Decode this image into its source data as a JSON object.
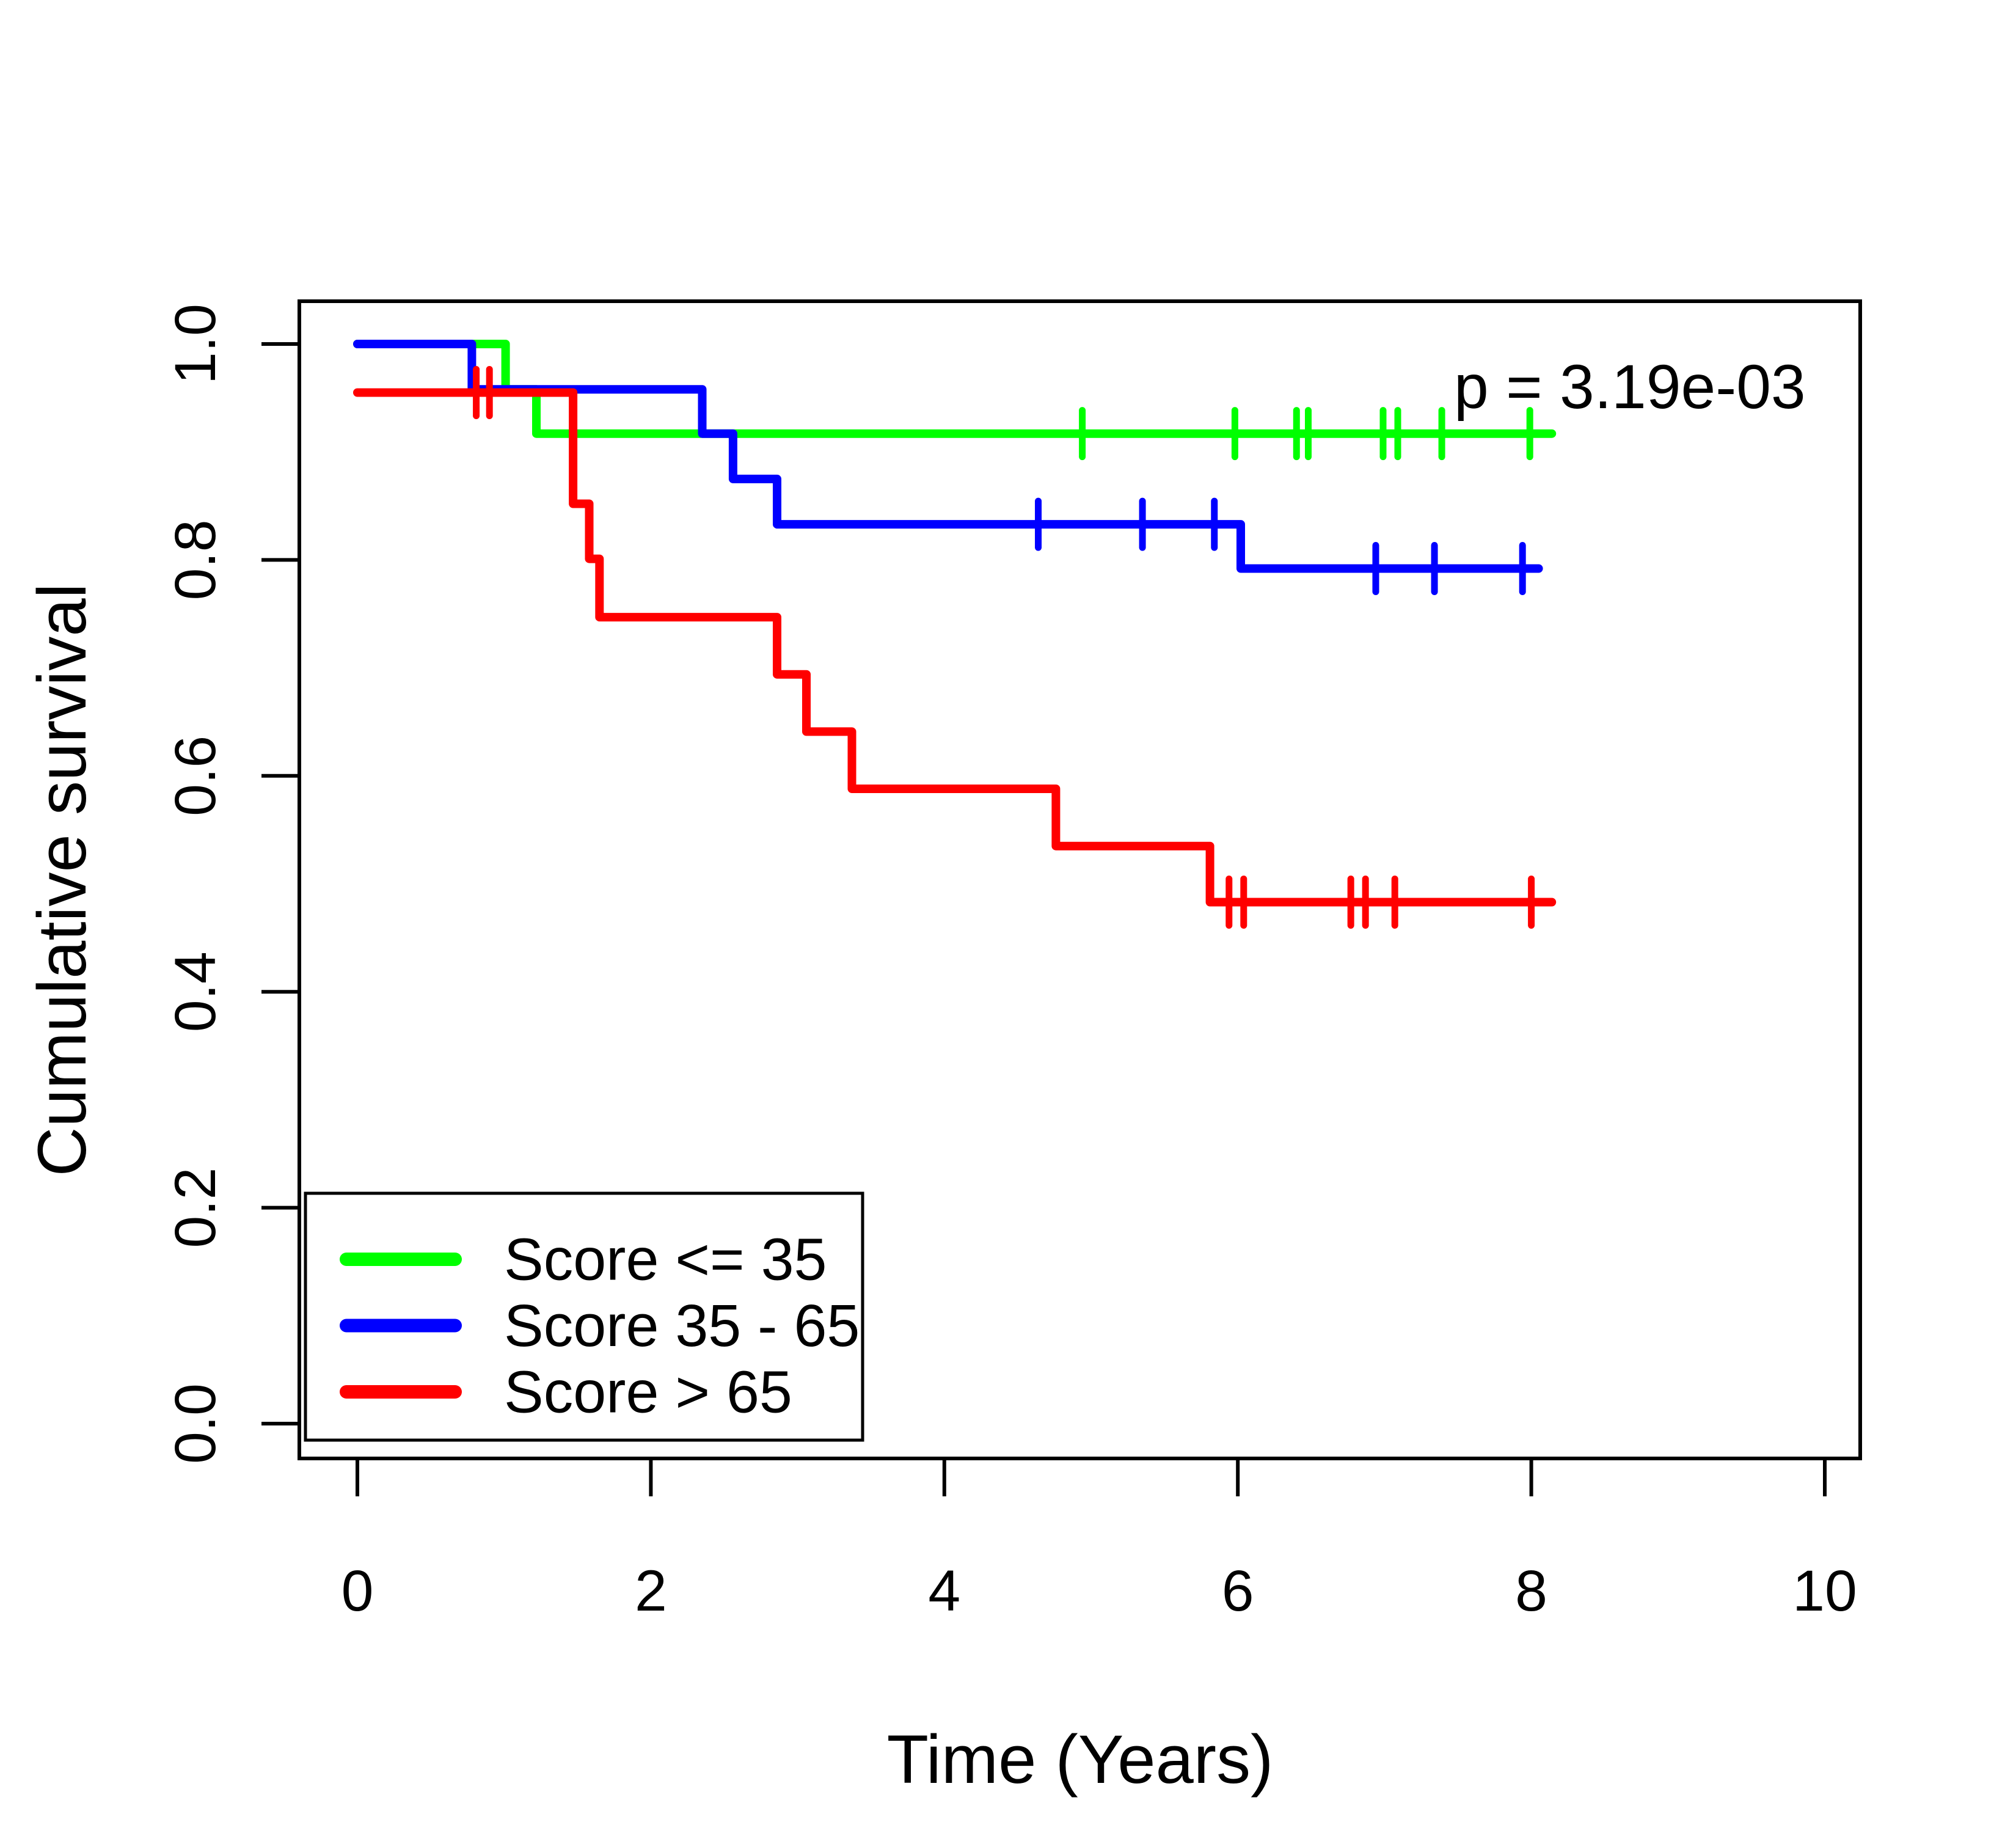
{
  "figure": {
    "background": "#ffffff",
    "axis_color": "#000000"
  },
  "chart_data": {
    "type": "line",
    "subtype": "kaplan-meier-step",
    "title": "",
    "xlabel": "Time (Years)",
    "ylabel": "Cumulative survival",
    "xlim": [
      -0.4,
      10.25
    ],
    "ylim": [
      -0.03,
      1.04
    ],
    "grid": false,
    "legend_position": "bottom-left",
    "x_ticks": {
      "values": [
        0,
        2,
        4,
        6,
        8,
        10
      ],
      "labels": [
        "0",
        "2",
        "4",
        "6",
        "8",
        "10"
      ]
    },
    "y_ticks": {
      "values": [
        1.0,
        0.8,
        0.6,
        0.4,
        0.2,
        0.0
      ],
      "labels": [
        "1.0",
        "0.8",
        "0.6",
        "0.4",
        "0.2",
        "0.0"
      ]
    },
    "annotation": {
      "text": "p = 3.19e-03",
      "x": 7.47,
      "y": 0.955
    },
    "series": [
      {
        "id": "score-le-35",
        "name": "Score <= 35",
        "color": "#00ff00",
        "points": [
          [
            0,
            1.0
          ],
          [
            1.01,
            0.958
          ],
          [
            1.22,
            0.917
          ]
        ],
        "end_time": 8.14,
        "censors": [
          [
            4.94,
            0.917
          ],
          [
            5.98,
            0.917
          ],
          [
            6.4,
            0.917
          ],
          [
            6.48,
            0.917
          ],
          [
            6.99,
            0.917
          ],
          [
            7.09,
            0.917
          ],
          [
            7.39,
            0.917
          ],
          [
            7.99,
            0.917
          ]
        ]
      },
      {
        "id": "score-35-65",
        "name": "Score 35 - 65",
        "color": "#0000ff",
        "points": [
          [
            0,
            1.0
          ],
          [
            0.78,
            0.958
          ],
          [
            2.35,
            0.917
          ],
          [
            2.56,
            0.875
          ],
          [
            2.86,
            0.833
          ],
          [
            6.02,
            0.792
          ]
        ],
        "end_time": 8.05,
        "censors": [
          [
            4.64,
            0.833
          ],
          [
            5.35,
            0.833
          ],
          [
            5.84,
            0.833
          ],
          [
            6.94,
            0.792
          ],
          [
            7.34,
            0.792
          ],
          [
            7.94,
            0.792
          ]
        ]
      },
      {
        "id": "score-gt-65",
        "name": "Score > 65",
        "color": "#ff0000",
        "points": [
          [
            0,
            0.955
          ],
          [
            1.47,
            0.852
          ],
          [
            1.58,
            0.801
          ],
          [
            1.65,
            0.747
          ],
          [
            2.86,
            0.694
          ],
          [
            3.06,
            0.641
          ],
          [
            3.37,
            0.588
          ],
          [
            4.76,
            0.535
          ],
          [
            5.81,
            0.483
          ]
        ],
        "end_time": 8.14,
        "censors": [
          [
            0.81,
            0.955
          ],
          [
            0.9,
            0.955
          ],
          [
            5.94,
            0.483
          ],
          [
            6.04,
            0.483
          ],
          [
            6.77,
            0.483
          ],
          [
            6.87,
            0.483
          ],
          [
            7.07,
            0.483
          ],
          [
            8.0,
            0.483
          ]
        ]
      }
    ]
  }
}
